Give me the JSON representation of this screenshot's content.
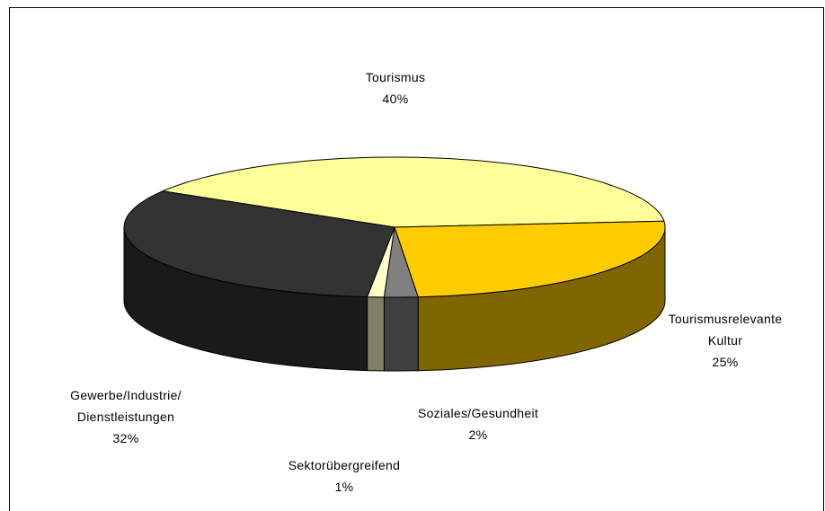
{
  "chart_data": {
    "type": "pie",
    "categories": [
      "Tourismus",
      "Tourismusrelevante Kultur",
      "Soziales/Gesundheit",
      "Sektorübergreifend",
      "Gewerbe/Industrie/ Dienstleistungen"
    ],
    "values": [
      40,
      25,
      2,
      1,
      32
    ],
    "value_labels": [
      "40%",
      "25%",
      "2%",
      "1%",
      "32%"
    ],
    "colors": [
      "#FFFF99",
      "#FFCC00",
      "#808080",
      "#FFFFCC",
      "#333333"
    ]
  }
}
